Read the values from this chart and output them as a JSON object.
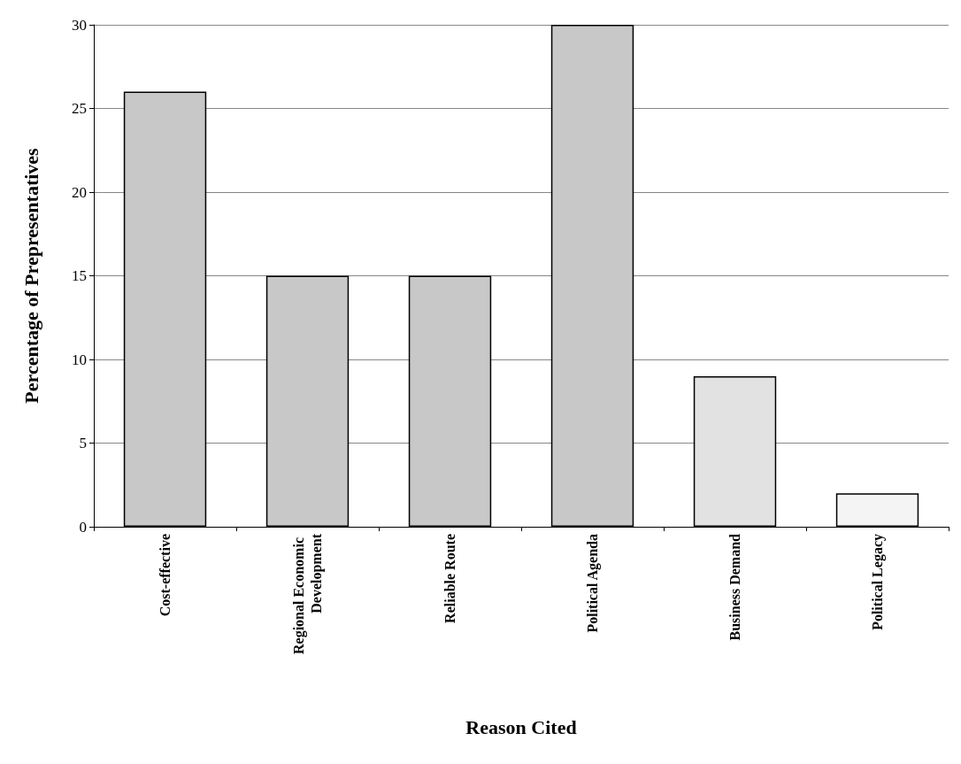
{
  "chart_data": {
    "type": "bar",
    "xlabel": "Reason Cited",
    "ylabel": "Percentage of Prepresentatives",
    "categories": [
      "Cost-effective",
      "Regional Economic Development",
      "Reliable Route",
      "Political Agenda",
      "Business Demand",
      "Political Legacy"
    ],
    "values": [
      26,
      15,
      15,
      30,
      9,
      2
    ],
    "colors": [
      "#c8c8c8",
      "#c8c8c8",
      "#c8c8c8",
      "#c8c8c8",
      "#e2e2e2",
      "#f4f4f4"
    ],
    "ylim": [
      0,
      30
    ],
    "yticks": [
      0,
      5,
      10,
      15,
      20,
      25,
      30
    ],
    "grid": "y"
  }
}
